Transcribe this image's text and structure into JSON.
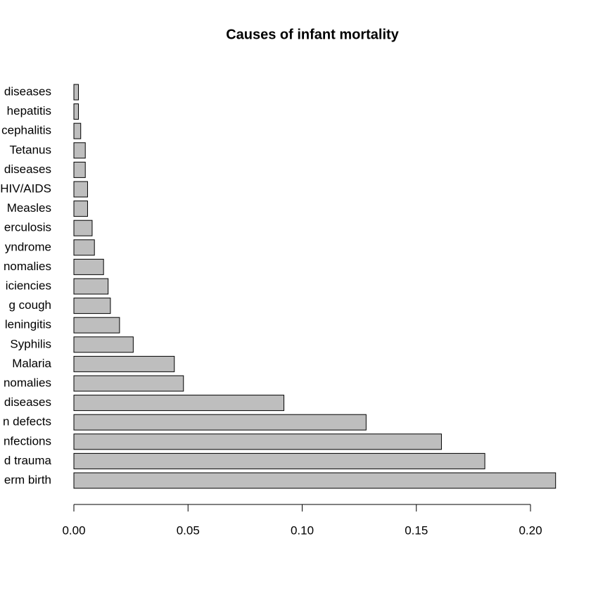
{
  "chart_data": {
    "type": "barh",
    "title": "Causes of infant mortality",
    "categories": [
      "erm birth",
      "d trauma",
      "nfections",
      "n defects",
      "diseases",
      "nomalies",
      "Malaria",
      "Syphilis",
      "leningitis",
      "g cough",
      "iciencies",
      "nomalies",
      "yndrome",
      "erculosis",
      "Measles",
      "HIV/AIDS",
      "diseases",
      "Tetanus",
      "cephalitis",
      "hepatitis",
      "diseases"
    ],
    "values": [
      0.211,
      0.18,
      0.161,
      0.128,
      0.092,
      0.048,
      0.044,
      0.026,
      0.02,
      0.016,
      0.015,
      0.013,
      0.009,
      0.008,
      0.006,
      0.006,
      0.005,
      0.005,
      0.003,
      0.002,
      0.002
    ],
    "color": "#bebebe",
    "xlim": [
      0,
      0.215
    ],
    "xticks": [
      {
        "value": 0,
        "label": "0.00"
      },
      {
        "value": 0.05,
        "label": "0.05"
      },
      {
        "value": 0.1,
        "label": "0.10"
      },
      {
        "value": 0.15,
        "label": "0.15"
      },
      {
        "value": 0.2,
        "label": "0.20"
      }
    ]
  }
}
